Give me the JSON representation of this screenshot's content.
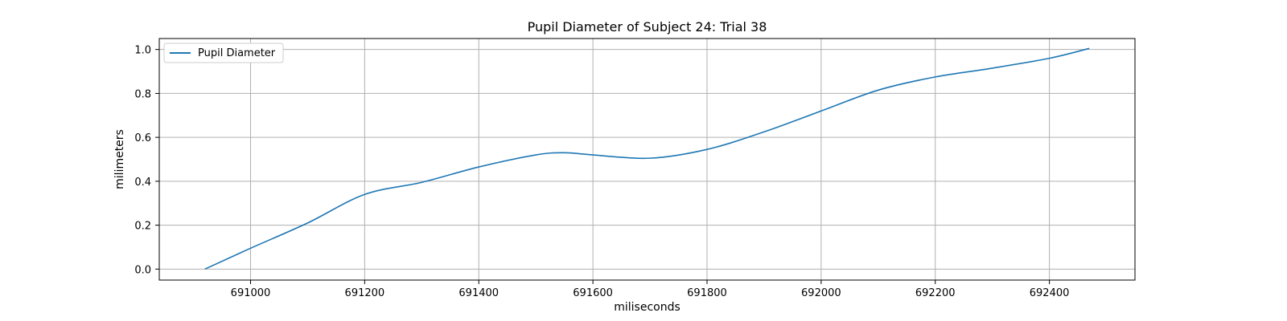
{
  "chart_data": {
    "type": "line",
    "title": "Pupil Diameter of Subject 24: Trial 38",
    "xlabel": "miliseconds",
    "ylabel": "milimeters",
    "xlim": [
      690840,
      692550
    ],
    "ylim": [
      -0.05,
      1.05
    ],
    "xticks": [
      691000,
      691200,
      691400,
      691600,
      691800,
      692000,
      692200,
      692400
    ],
    "yticks": [
      0.0,
      0.2,
      0.4,
      0.6,
      0.8,
      1.0
    ],
    "xtick_labels": [
      "691000",
      "691200",
      "691400",
      "691600",
      "691800",
      "692000",
      "692200",
      "692400"
    ],
    "ytick_labels": [
      "0.0",
      "0.2",
      "0.4",
      "0.6",
      "0.8",
      "1.0"
    ],
    "grid": true,
    "legend_position": "top-left",
    "series": [
      {
        "name": "Pupil Diameter",
        "color": "#1f77b4",
        "x": [
          690920,
          691000,
          691100,
          691200,
          691300,
          691400,
          691500,
          691550,
          691600,
          691700,
          691800,
          691900,
          692000,
          692100,
          692200,
          692300,
          692400,
          692470
        ],
        "y": [
          0.0,
          0.095,
          0.21,
          0.34,
          0.395,
          0.465,
          0.52,
          0.53,
          0.52,
          0.505,
          0.545,
          0.625,
          0.72,
          0.815,
          0.875,
          0.915,
          0.96,
          1.005
        ]
      }
    ]
  }
}
